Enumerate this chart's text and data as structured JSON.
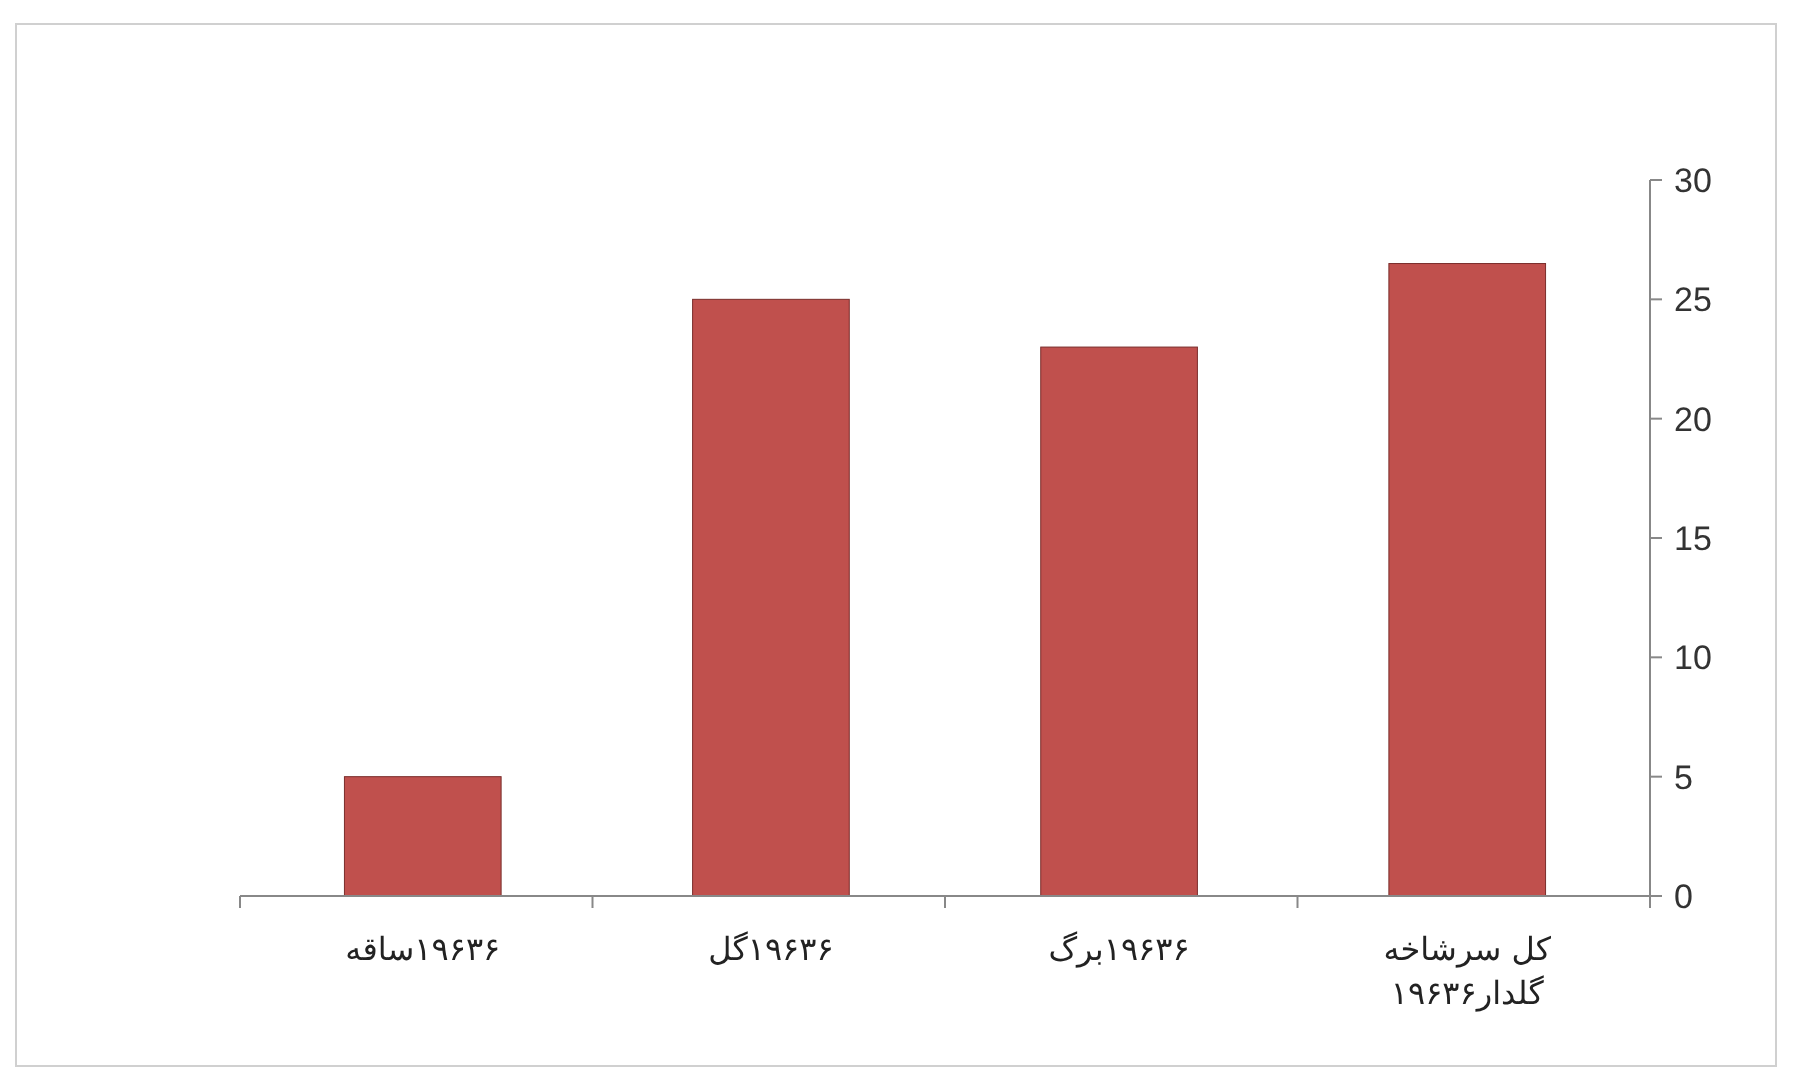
{
  "chart_data": {
    "type": "bar",
    "categories": [
      "۱۹۶۳۶ساقه",
      "۱۹۶۳۶گل",
      "۱۹۶۳۶برگ",
      "کل سرشاخه گلدار۱۹۶۳۶"
    ],
    "values": [
      5,
      25,
      23,
      26.5
    ],
    "color": "#c0504d",
    "ylim": [
      0,
      30
    ],
    "yticks": [
      0,
      5,
      10,
      15,
      20,
      25,
      30
    ],
    "grid": false
  }
}
